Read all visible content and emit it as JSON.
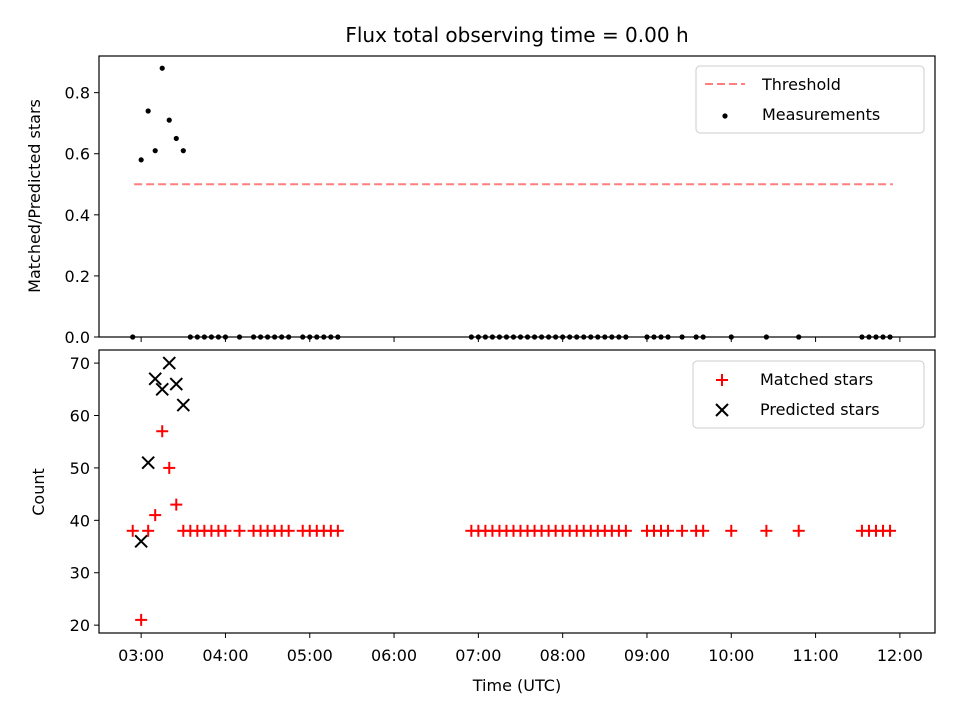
{
  "chart_data": [
    {
      "type": "scatter",
      "title": "Flux total observing time = 0.00 h",
      "xlabel": "",
      "ylabel": "Matched/Predicted stars",
      "xlim": [
        "02:30",
        "12:25"
      ],
      "ylim": [
        0,
        0.92
      ],
      "yticks": [
        "0.0",
        "0.2",
        "0.4",
        "0.6",
        "0.8"
      ],
      "legend_position": "top-right",
      "grid": false,
      "series": [
        {
          "name": "Threshold",
          "kind": "line",
          "style": "dashed",
          "color": "#ff7f7f",
          "x": [
            "02:55",
            "11:55"
          ],
          "y": [
            0.5,
            0.5
          ]
        },
        {
          "name": "Measurements",
          "kind": "scatter",
          "marker": "dot",
          "color": "#000000",
          "x": [
            "02:54",
            "03:00",
            "03:05",
            "03:10",
            "03:15",
            "03:20",
            "03:25",
            "03:30",
            "03:35",
            "03:40",
            "03:45",
            "03:50",
            "03:55",
            "04:00",
            "04:10",
            "04:20",
            "04:25",
            "04:30",
            "04:35",
            "04:40",
            "04:45",
            "04:55",
            "05:00",
            "05:05",
            "05:10",
            "05:15",
            "05:20",
            "06:55",
            "07:00",
            "07:05",
            "07:10",
            "07:15",
            "07:20",
            "07:25",
            "07:30",
            "07:35",
            "07:40",
            "07:45",
            "07:50",
            "07:55",
            "08:00",
            "08:05",
            "08:10",
            "08:15",
            "08:20",
            "08:25",
            "08:30",
            "08:35",
            "08:40",
            "08:45",
            "09:00",
            "09:05",
            "09:10",
            "09:15",
            "09:25",
            "09:35",
            "09:40",
            "10:00",
            "10:25",
            "10:48",
            "11:33",
            "11:38",
            "11:43",
            "11:48",
            "11:53"
          ],
          "y": [
            0.0,
            0.58,
            0.74,
            0.61,
            0.88,
            0.71,
            0.65,
            0.61,
            0.0,
            0.0,
            0.0,
            0.0,
            0.0,
            0.0,
            0.0,
            0.0,
            0.0,
            0.0,
            0.0,
            0.0,
            0.0,
            0.0,
            0.0,
            0.0,
            0.0,
            0.0,
            0.0,
            0.0,
            0.0,
            0.0,
            0.0,
            0.0,
            0.0,
            0.0,
            0.0,
            0.0,
            0.0,
            0.0,
            0.0,
            0.0,
            0.0,
            0.0,
            0.0,
            0.0,
            0.0,
            0.0,
            0.0,
            0.0,
            0.0,
            0.0,
            0.0,
            0.0,
            0.0,
            0.0,
            0.0,
            0.0,
            0.0,
            0.0,
            0.0,
            0.0,
            0.0,
            0.0,
            0.0,
            0.0,
            0.0
          ]
        }
      ]
    },
    {
      "type": "scatter",
      "title": "",
      "xlabel": "Time (UTC)",
      "ylabel": "Count",
      "xlim": [
        "02:30",
        "12:25"
      ],
      "ylim": [
        18.5,
        72.5
      ],
      "yticks": [
        "20",
        "30",
        "40",
        "50",
        "60",
        "70"
      ],
      "xticks": [
        "03:00",
        "04:00",
        "05:00",
        "06:00",
        "07:00",
        "08:00",
        "09:00",
        "10:00",
        "11:00",
        "12:00"
      ],
      "legend_position": "top-right",
      "grid": false,
      "series": [
        {
          "name": "Matched stars",
          "kind": "scatter",
          "marker": "plus",
          "color": "#ff0000",
          "x": [
            "02:54",
            "03:00",
            "03:05",
            "03:10",
            "03:15",
            "03:20",
            "03:25",
            "03:30",
            "03:35",
            "03:40",
            "03:45",
            "03:50",
            "03:55",
            "04:00",
            "04:10",
            "04:20",
            "04:25",
            "04:30",
            "04:35",
            "04:40",
            "04:45",
            "04:55",
            "05:00",
            "05:05",
            "05:10",
            "05:15",
            "05:20",
            "06:55",
            "07:00",
            "07:05",
            "07:10",
            "07:15",
            "07:20",
            "07:25",
            "07:30",
            "07:35",
            "07:40",
            "07:45",
            "07:50",
            "07:55",
            "08:00",
            "08:05",
            "08:10",
            "08:15",
            "08:20",
            "08:25",
            "08:30",
            "08:35",
            "08:40",
            "08:45",
            "09:00",
            "09:05",
            "09:10",
            "09:15",
            "09:25",
            "09:35",
            "09:40",
            "10:00",
            "10:25",
            "10:48",
            "11:33",
            "11:38",
            "11:43",
            "11:48",
            "11:53"
          ],
          "y": [
            38,
            21,
            38,
            41,
            57,
            50,
            43,
            38,
            38,
            38,
            38,
            38,
            38,
            38,
            38,
            38,
            38,
            38,
            38,
            38,
            38,
            38,
            38,
            38,
            38,
            38,
            38,
            38,
            38,
            38,
            38,
            38,
            38,
            38,
            38,
            38,
            38,
            38,
            38,
            38,
            38,
            38,
            38,
            38,
            38,
            38,
            38,
            38,
            38,
            38,
            38,
            38,
            38,
            38,
            38,
            38,
            38,
            38,
            38,
            38,
            38,
            38,
            38,
            38,
            38
          ]
        },
        {
          "name": "Predicted stars",
          "kind": "scatter",
          "marker": "x",
          "color": "#000000",
          "x": [
            "03:00",
            "03:05",
            "03:10",
            "03:15",
            "03:20",
            "03:25",
            "03:30"
          ],
          "y": [
            36,
            51,
            67,
            65,
            70,
            66,
            62
          ]
        }
      ]
    }
  ]
}
